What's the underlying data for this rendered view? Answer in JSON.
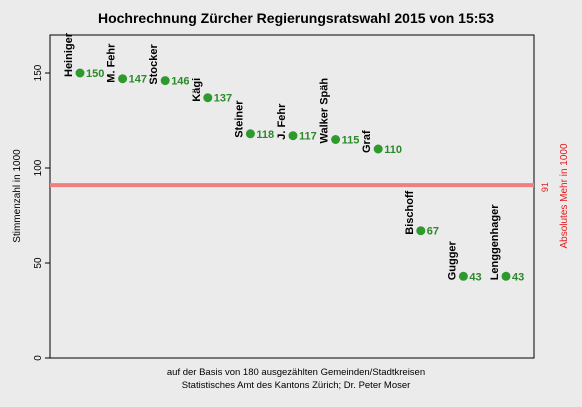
{
  "chart_data": {
    "type": "scatter",
    "title": "Hochrechnung Zürcher Regierungsratswahl 2015 von 15:53",
    "ylabel": "Stimmenzahl in 1000",
    "ylabel_right": "Absolutes Mehr in 1000",
    "ylim": [
      0,
      170
    ],
    "yticks": [
      0,
      50,
      100,
      150
    ],
    "reference_line": {
      "value": 91,
      "label": "91"
    },
    "categories": [
      "Heiniger",
      "M. Fehr",
      "Stocker",
      "Kägi",
      "Steiner",
      "J. Fehr",
      "Walker Späh",
      "Graf",
      "Bischoff",
      "Gugger",
      "Lenggenhager"
    ],
    "values": [
      150,
      147,
      146,
      137,
      118,
      117,
      115,
      110,
      67,
      43,
      43
    ],
    "footer": [
      "auf der Basis von 180 ausgezählten Gemeinden/Stadtkreisen",
      "Statistisches Amt des Kantons Zürich; Dr. Peter Moser"
    ],
    "colors": {
      "point": "#2e9a2e",
      "reference": "#f08080",
      "background": "#ebebeb"
    }
  }
}
